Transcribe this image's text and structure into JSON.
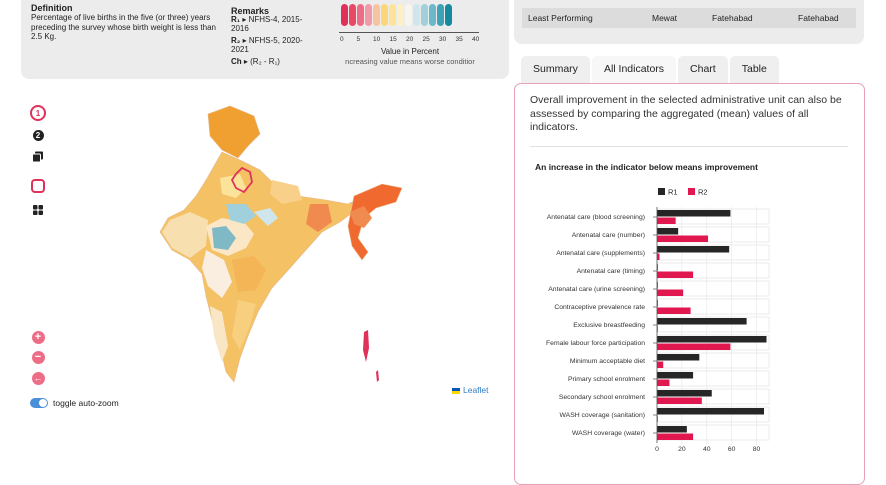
{
  "info": {
    "definition_title": "Definition",
    "definition_text": "Percentage of live births in the five (or three) years preceding the survey whose birth weight is less than 2.5 Kg.",
    "remarks_title": "Remarks",
    "r1_key": "R₁",
    "r1_text": "▸ NFHS-4, 2015-",
    "r1_text2": "2016",
    "r2_key": "R₂",
    "r2_text": "▸ NFHS-5, 2020-",
    "r2_text2": "2021",
    "ch_key": "Ch",
    "ch_text": "▸ (R₂ - R₁)"
  },
  "legend": {
    "colors": [
      "#e0315a",
      "#e84a66",
      "#ee6d86",
      "#f39aa9",
      "#f8c4a0",
      "#fbd77a",
      "#fce39a",
      "#fdf0c9",
      "#f6f6ef",
      "#cfe7ec",
      "#9fd0db",
      "#6bb8c9",
      "#3ea2b6",
      "#17899f"
    ],
    "ticks": [
      "0",
      "5",
      "10",
      "15",
      "20",
      "25",
      "30",
      "35",
      "40"
    ],
    "unit": "Value in Percent",
    "note": "ncreasing value means worse conditior"
  },
  "top_table": {
    "label": "Least Performing",
    "c1": "Mewat",
    "c2": "Fatehabad",
    "c3": "Fatehabad"
  },
  "tabs": [
    "Summary",
    "All Indicators",
    "Chart",
    "Table"
  ],
  "summary": {
    "text": "Overall improvement in the selected administrative unit can also be assessed by comparing the aggregated (mean) values of all indicators."
  },
  "controls": {
    "num1": "1",
    "num2": "2",
    "zoom_in": "+",
    "zoom_out": "−",
    "back": "←",
    "toggle_label": "toggle auto-zoom",
    "leaflet": "Leaflet"
  },
  "chart_data": {
    "type": "bar",
    "title": "An increase in the indicator below means improvement",
    "legend_position": "top",
    "series": [
      {
        "name": "R1",
        "color": "#262626",
        "values": [
          59,
          17,
          58,
          0,
          0,
          0,
          72,
          88,
          34,
          29,
          44,
          86,
          24
        ]
      },
      {
        "name": "R2",
        "color": "#e0184f",
        "values": [
          15,
          41,
          2,
          29,
          21,
          27,
          0,
          59,
          5,
          10,
          36,
          0,
          29
        ]
      }
    ],
    "categories": [
      "Antenatal care (blood screening)",
      "Antenatal care (number)",
      "Antenatal care (supplements)",
      "Antenatal care (timing)",
      "Antenatal care (urine screening)",
      "Contraceptive prevalence rate",
      "Exclusive breastfeeding",
      "Female labour force participation",
      "Minimum acceptable diet",
      "Primary school enrolment",
      "Secondary school enrolment",
      "WASH coverage (sanitation)",
      "WASH coverage (water)"
    ],
    "xlim": [
      0,
      90
    ],
    "xticks": [
      0,
      20,
      40,
      60,
      80
    ]
  }
}
